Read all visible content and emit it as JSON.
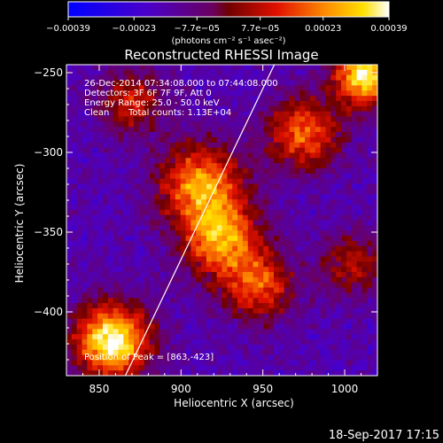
{
  "chart_data": {
    "type": "heatmap",
    "title": "Reconstructed RHESSI Image",
    "xlabel": "Heliocentric X (arcsec)",
    "ylabel": "Heliocentric Y (arcsec)",
    "xlim": [
      830,
      1020
    ],
    "ylim": [
      -440,
      -245
    ],
    "x_ticks": [
      850,
      900,
      950,
      1000
    ],
    "y_ticks": [
      -250,
      -300,
      -350,
      -400
    ],
    "x_tick_labels": [
      "850",
      "900",
      "950",
      "1000"
    ],
    "y_tick_labels": [
      "−250",
      "−300",
      "−350",
      "−400"
    ],
    "colorbar": {
      "range": [
        -0.00039,
        0.00039
      ],
      "ticks": [
        -0.00039,
        -0.00023,
        -7.7e-05,
        7.7e-05,
        0.00023,
        0.00039
      ],
      "tick_labels": [
        "−0.00039",
        "−0.00023",
        "−7.7e−05",
        "7.7e−05",
        "0.00023",
        "0.00039"
      ],
      "units_label": "(photons cm⁻² s⁻¹ asec⁻²)"
    },
    "annotations": {
      "time": "26-Dec-2014 07:34:08.000 to 07:44:08.000",
      "detectors": "Detectors: 3F 6F 7F 9F, Att 0",
      "energy": "Energy Range: 25.0 - 50.0 keV",
      "clean_label": "Clean",
      "counts": "Total counts: 1.13E+04",
      "peak": "Position of Peak = [863,-423]"
    },
    "limb_line": {
      "x": [
        866,
        957
      ],
      "y": [
        -440,
        -245
      ]
    },
    "sources": [
      {
        "x": 858,
        "y": -418,
        "amplitude": 1.0,
        "sigma": 16
      },
      {
        "x": 1012,
        "y": -252,
        "amplitude": 0.95,
        "sigma": 13
      },
      {
        "x": 912,
        "y": -320,
        "amplitude": 0.72,
        "sigma": 18
      },
      {
        "x": 925,
        "y": -355,
        "amplitude": 0.7,
        "sigma": 17
      },
      {
        "x": 948,
        "y": -385,
        "amplitude": 0.55,
        "sigma": 15
      },
      {
        "x": 975,
        "y": -288,
        "amplitude": 0.62,
        "sigma": 16
      },
      {
        "x": 870,
        "y": -268,
        "amplitude": 0.45,
        "sigma": 14
      },
      {
        "x": 1005,
        "y": -370,
        "amplitude": 0.4,
        "sigma": 14
      }
    ]
  },
  "footer": {
    "timestamp": "18-Sep-2017 17:15"
  }
}
